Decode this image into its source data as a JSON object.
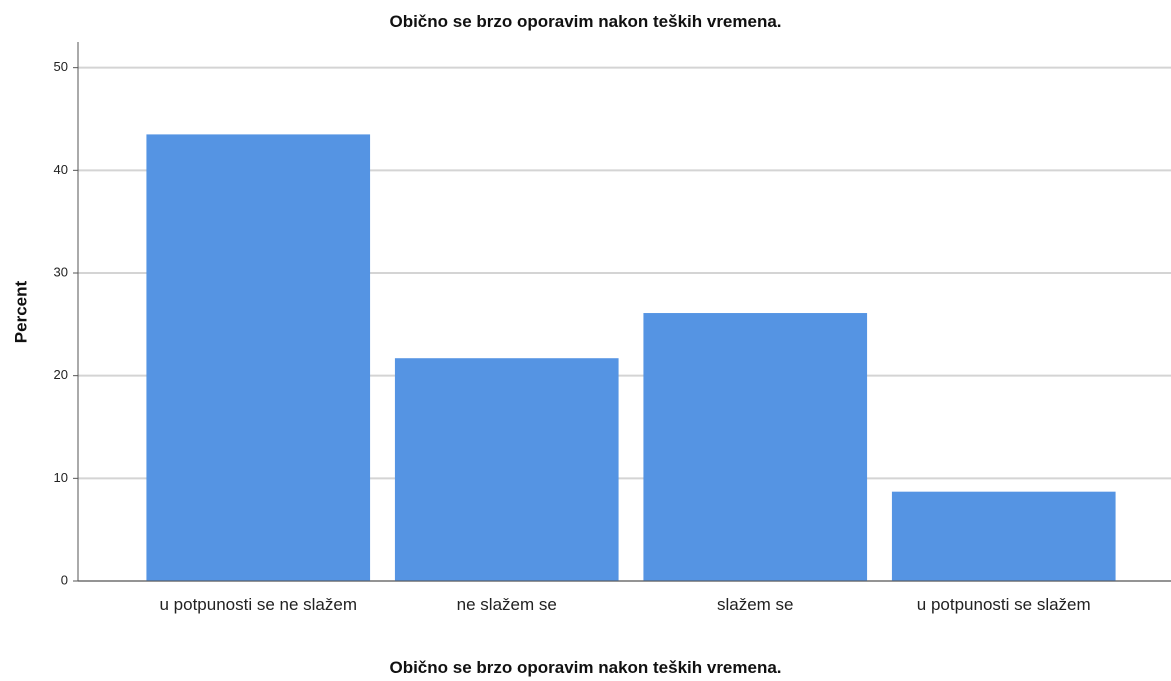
{
  "chart_data": {
    "type": "bar",
    "title": "Obično se brzo oporavim nakon teških vremena.",
    "x_label": "Obično se brzo oporavim nakon teških vremena.",
    "y_label": "Percent",
    "categories": [
      "u potpunosti se ne slažem",
      "ne slažem se",
      "slažem se",
      "u potpunosti se slažem"
    ],
    "values": [
      43.5,
      21.7,
      26.1,
      8.7
    ],
    "color": "#5594e3",
    "ylim": [
      0,
      52.5
    ],
    "yticks": [
      0,
      10,
      20,
      30,
      40,
      50
    ],
    "grid": true
  }
}
